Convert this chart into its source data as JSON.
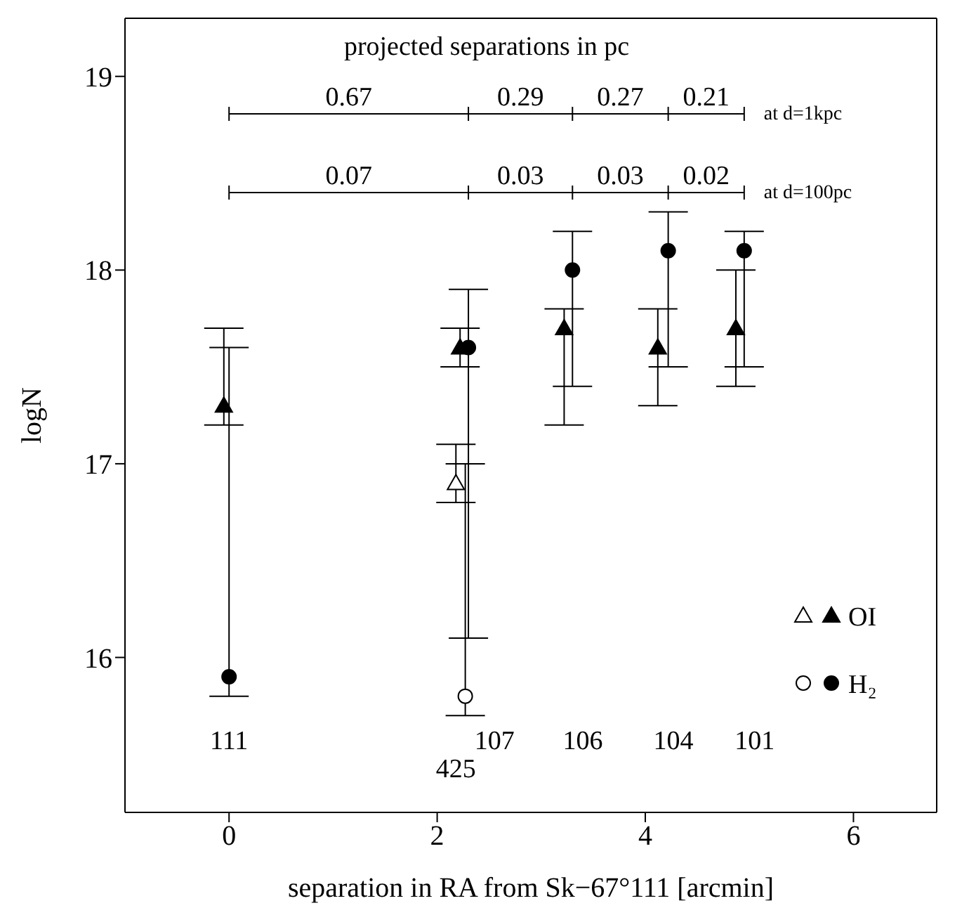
{
  "chart_data": {
    "type": "scatter",
    "xlabel": "separation in RA from Sk−67°111 [arcmin]",
    "ylabel": "logN",
    "xlim": [
      -1,
      6.8
    ],
    "xticks": [
      0,
      2,
      4,
      6
    ],
    "ylim": [
      15.2,
      19.3
    ],
    "yticks": [
      16,
      17,
      18,
      19
    ],
    "legend": "bottom right",
    "series": [
      {
        "name": "OI",
        "color": "#000000",
        "marker": "triangle",
        "x": [
          -0.05,
          2.22,
          3.22,
          4.12,
          4.87
        ],
        "values": [
          17.3,
          17.6,
          17.7,
          17.6,
          17.7
        ],
        "errors": [
          [
            17.2,
            17.7
          ],
          [
            17.5,
            17.7
          ],
          [
            17.2,
            17.8
          ],
          [
            17.3,
            17.8
          ],
          [
            17.4,
            18.0
          ]
        ]
      },
      {
        "color": "#ffffff",
        "marker": "triangle",
        "x": [
          2.18
        ],
        "values": [
          16.9
        ],
        "errors": [
          [
            16.8,
            17.1
          ]
        ]
      },
      {
        "name": "H₂",
        "color": "#000000",
        "marker": "circle",
        "x": [
          0,
          2.3,
          3.3,
          4.22,
          4.95
        ],
        "values": [
          15.9,
          17.6,
          18.0,
          18.1,
          18.1
        ],
        "errors": [
          [
            15.8,
            17.6
          ],
          [
            16.1,
            17.9
          ],
          [
            17.4,
            18.2
          ],
          [
            17.5,
            18.3
          ],
          [
            17.5,
            18.2
          ]
        ]
      },
      {
        "color": "#ffffff",
        "marker": "circle",
        "x": [
          2.27
        ],
        "values": [
          15.8
        ],
        "errors": [
          [
            15.7,
            17.0
          ]
        ]
      }
    ],
    "annotations": [
      "projected separations in pc",
      "0.67",
      "0.29",
      "0.27",
      "0.21",
      "at d=1kpc",
      "0.07",
      "0.03",
      "0.03",
      "0.02",
      "at d=100pc",
      "111",
      "107",
      "425",
      "106",
      "104",
      "101"
    ]
  }
}
